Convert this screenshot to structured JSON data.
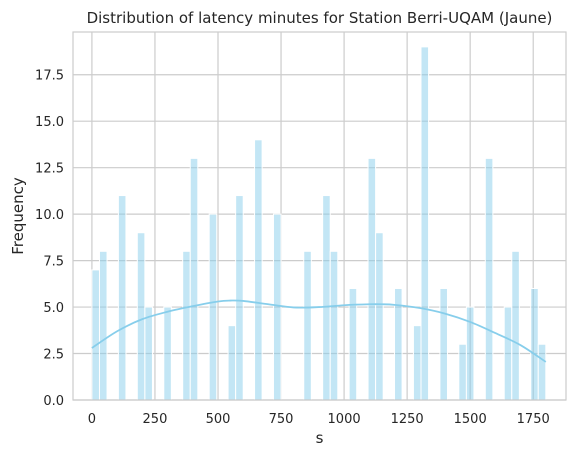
{
  "chart_data": {
    "type": "bar",
    "title": "Distribution of latency minutes for Station Berri-UQAM (Jaune)",
    "xlabel": "s",
    "ylabel": "Frequency",
    "xlim": [
      -75,
      1880
    ],
    "ylim": [
      0,
      19.8
    ],
    "xticks": [
      0,
      250,
      500,
      750,
      1000,
      1250,
      1500,
      1750
    ],
    "xtick_labels": [
      "0",
      "250",
      "500",
      "750",
      "1000",
      "1250",
      "1500",
      "1750"
    ],
    "yticks": [
      0,
      2.5,
      5,
      7.5,
      10,
      12.5,
      15,
      17.5
    ],
    "ytick_labels": [
      "0.0",
      "2.5",
      "5.0",
      "7.5",
      "10.0",
      "12.5",
      "15.0",
      "17.5"
    ],
    "grid": true,
    "bin_width": 30,
    "bars": [
      {
        "x": 15,
        "value": 7
      },
      {
        "x": 45,
        "value": 8
      },
      {
        "x": 120,
        "value": 11
      },
      {
        "x": 195,
        "value": 9
      },
      {
        "x": 225,
        "value": 5
      },
      {
        "x": 300,
        "value": 5
      },
      {
        "x": 375,
        "value": 8
      },
      {
        "x": 405,
        "value": 13
      },
      {
        "x": 480,
        "value": 10
      },
      {
        "x": 555,
        "value": 4
      },
      {
        "x": 585,
        "value": 11
      },
      {
        "x": 660,
        "value": 14
      },
      {
        "x": 735,
        "value": 10
      },
      {
        "x": 855,
        "value": 8
      },
      {
        "x": 930,
        "value": 11
      },
      {
        "x": 960,
        "value": 8
      },
      {
        "x": 1035,
        "value": 6
      },
      {
        "x": 1110,
        "value": 13
      },
      {
        "x": 1140,
        "value": 9
      },
      {
        "x": 1215,
        "value": 6
      },
      {
        "x": 1290,
        "value": 4
      },
      {
        "x": 1320,
        "value": 19
      },
      {
        "x": 1395,
        "value": 6
      },
      {
        "x": 1470,
        "value": 3
      },
      {
        "x": 1500,
        "value": 5
      },
      {
        "x": 1575,
        "value": 13
      },
      {
        "x": 1650,
        "value": 5
      },
      {
        "x": 1680,
        "value": 8
      },
      {
        "x": 1755,
        "value": 6
      },
      {
        "x": 1785,
        "value": 3
      }
    ],
    "kde": {
      "x": [
        0,
        100,
        200,
        300,
        400,
        500,
        550,
        600,
        700,
        800,
        900,
        1000,
        1100,
        1150,
        1200,
        1300,
        1400,
        1500,
        1600,
        1700,
        1800
      ],
      "y": [
        2.8,
        3.7,
        4.35,
        4.75,
        5.05,
        5.3,
        5.35,
        5.33,
        5.15,
        4.98,
        5.0,
        5.1,
        5.15,
        5.15,
        5.12,
        4.95,
        4.65,
        4.2,
        3.6,
        2.95,
        2.05
      ]
    },
    "colors": {
      "bar": "#87ceeb",
      "bar_opacity": 0.5,
      "kde": "#87ceeb",
      "grid": "#cccccc",
      "frame": "#cccccc",
      "text": "#262626"
    }
  }
}
